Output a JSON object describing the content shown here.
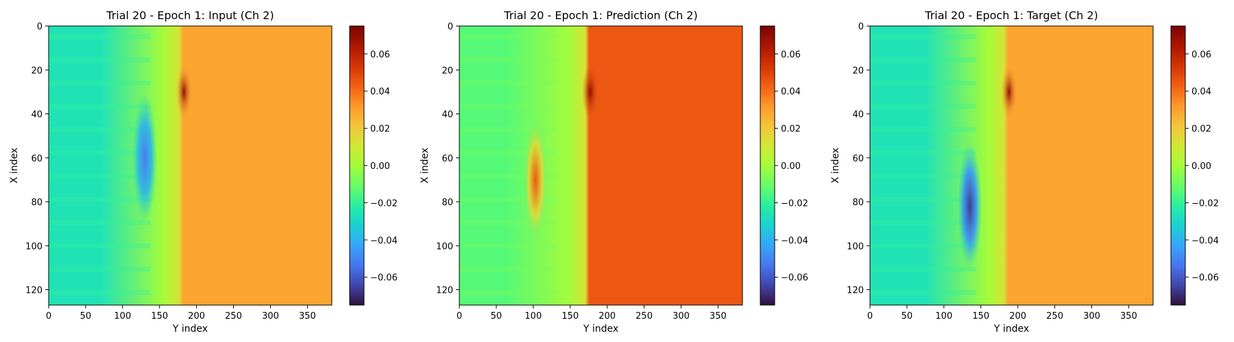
{
  "colors": {
    "colormap": "turbo",
    "wave_blue": "#3b66f0",
    "wave_navy": "#2a1a72",
    "shock_red": "#8b1a0a"
  },
  "chart_data": [
    {
      "type": "heatmap",
      "title": "Trial 20 - Epoch 1: Input (Ch 2)",
      "xlabel": "Y index",
      "ylabel": "X index",
      "xlim": [
        0,
        383
      ],
      "ylim": [
        127,
        0
      ],
      "x_ticks": [
        0,
        50,
        100,
        150,
        200,
        250,
        300,
        350
      ],
      "y_ticks": [
        0,
        20,
        40,
        60,
        80,
        100,
        120
      ],
      "colorbar": {
        "vmin": -0.075,
        "vmax": 0.075,
        "ticks": [
          -0.06,
          -0.04,
          -0.02,
          0.0,
          0.02,
          0.04,
          0.06
        ]
      },
      "field": {
        "front_y": 178,
        "left_value": -0.026,
        "right_value": 0.029,
        "front_peak": 0.07,
        "trough": {
          "x": 60,
          "y": 130,
          "value": -0.052
        }
      }
    },
    {
      "type": "heatmap",
      "title": "Trial 20 - Epoch 1: Prediction (Ch 2)",
      "xlabel": "Y index",
      "ylabel": "X index",
      "xlim": [
        0,
        383
      ],
      "ylim": [
        127,
        0
      ],
      "x_ticks": [
        0,
        50,
        100,
        150,
        200,
        250,
        300,
        350
      ],
      "y_ticks": [
        0,
        20,
        40,
        60,
        80,
        100,
        120
      ],
      "colorbar": {
        "vmin": -0.075,
        "vmax": 0.075,
        "ticks": [
          -0.06,
          -0.04,
          -0.02,
          0.0,
          0.02,
          0.04,
          0.06
        ]
      },
      "field": {
        "front_y": 172,
        "left_value": -0.014,
        "right_value": 0.045,
        "front_peak": 0.07,
        "trough": {
          "x": 70,
          "y": 103,
          "value": 0.045
        }
      }
    },
    {
      "type": "heatmap",
      "title": "Trial 20 - Epoch 1: Target (Ch 2)",
      "xlabel": "Y index",
      "ylabel": "X index",
      "xlim": [
        0,
        383
      ],
      "ylim": [
        127,
        0
      ],
      "x_ticks": [
        0,
        50,
        100,
        150,
        200,
        250,
        300,
        350
      ],
      "y_ticks": [
        0,
        20,
        40,
        60,
        80,
        100,
        120
      ],
      "colorbar": {
        "vmin": -0.075,
        "vmax": 0.075,
        "ticks": [
          -0.06,
          -0.04,
          -0.02,
          0.0,
          0.02,
          0.04,
          0.06
        ]
      },
      "field": {
        "front_y": 183,
        "left_value": -0.026,
        "right_value": 0.029,
        "front_peak": 0.07,
        "trough": {
          "x": 82,
          "y": 135,
          "value": -0.066
        }
      }
    }
  ]
}
